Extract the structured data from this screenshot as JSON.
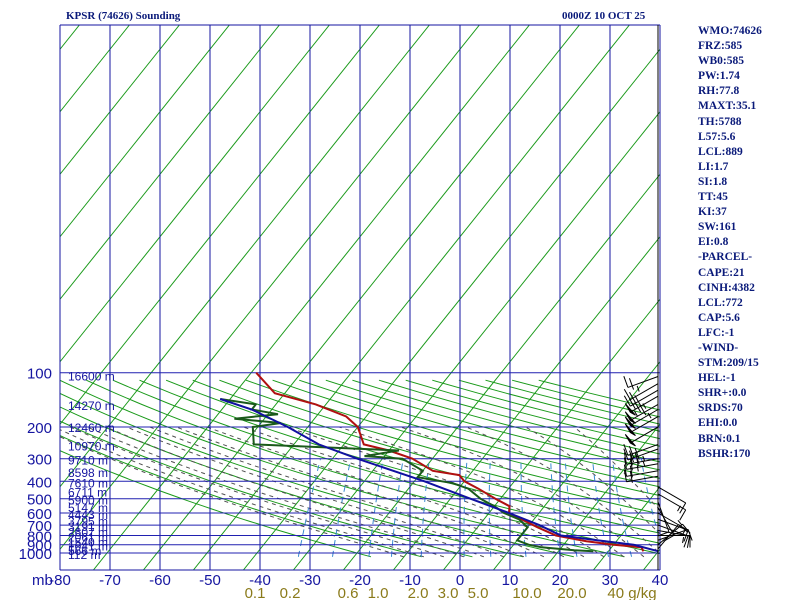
{
  "header": {
    "station_title": "KPSR (74626) Sounding",
    "time_label": "0000Z 10 OCT 25"
  },
  "indices": [
    "WMO:74626",
    "FRZ:585",
    "WB0:585",
    "PW:1.74",
    "RH:77.8",
    "MAXT:35.1",
    "TH:5788",
    "L57:5.6",
    "LCL:889",
    "LI:1.7",
    "SI:1.8",
    "TT:45",
    "KI:37",
    "SW:161",
    "EI:0.8",
    "-PARCEL-",
    "CAPE:21",
    "CINH:4382",
    "LCL:772",
    "CAP:5.6",
    "LFC:-1",
    "-WIND-",
    "STM:209/15",
    "HEL:-1",
    "SHR+:0.0",
    "SRDS:70",
    "EHI:0.0",
    "BRN:0.1",
    "BSHR:170"
  ],
  "chart_data": {
    "type": "skew-t",
    "y_axis_unit": "mb",
    "pressure_levels": [
      100,
      200,
      300,
      400,
      500,
      600,
      700,
      800,
      900,
      1000
    ],
    "pressure_labels": [
      "100",
      "200",
      "300",
      "400",
      "500",
      "600",
      "700",
      "800",
      "900",
      "1000"
    ],
    "temperature_ticks": [
      -80,
      -70,
      -60,
      -50,
      -40,
      -30,
      -20,
      -10,
      0,
      10,
      20,
      30,
      40
    ],
    "temperature_labels": [
      "-80",
      "-70",
      "-60",
      "-50",
      "-40",
      "-30",
      "-20",
      "-10",
      "0",
      "10",
      "20",
      "30",
      "40"
    ],
    "height_labels": [
      {
        "p": 102,
        "text": "16600 m"
      },
      {
        "p": 149,
        "text": "14270 m"
      },
      {
        "p": 198,
        "text": "12460 m"
      },
      {
        "p": 250,
        "text": "10970 m"
      },
      {
        "p": 300,
        "text": "9710 m"
      },
      {
        "p": 350,
        "text": "8598 m"
      },
      {
        "p": 400,
        "text": "7610 m"
      },
      {
        "p": 450,
        "text": "6711 m"
      },
      {
        "p": 500,
        "text": "5900 m"
      },
      {
        "p": 550,
        "text": "5147 m"
      },
      {
        "p": 600,
        "text": "4443 m"
      },
      {
        "p": 650,
        "text": "3795 m"
      },
      {
        "p": 700,
        "text": "3191 m"
      },
      {
        "p": 750,
        "text": "2607 m"
      },
      {
        "p": 800,
        "text": "2061 m"
      },
      {
        "p": 850,
        "text": "1540 m"
      },
      {
        "p": 900,
        "text": "1041 m"
      },
      {
        "p": 950,
        "text": "566 m"
      },
      {
        "p": 1000,
        "text": "112 m"
      }
    ],
    "mixing_ratio_labels": [
      "0.1",
      "0.2",
      "0.6",
      "1.0",
      "2.0",
      "3.0",
      "5.0",
      "10.0",
      "20.0",
      "40 g/kg"
    ],
    "mixing_ratio_values": [
      0.1,
      0.2,
      0.6,
      1.0,
      2.0,
      3.0,
      5.0,
      10.0,
      20.0,
      40
    ],
    "series": [
      {
        "name": "temperature",
        "color": "#b01010",
        "points": [
          {
            "p": 978,
            "t": 27
          },
          {
            "p": 930,
            "t": 26
          },
          {
            "p": 900,
            "t": 20
          },
          {
            "p": 860,
            "t": 14
          },
          {
            "p": 800,
            "t": 7
          },
          {
            "p": 720,
            "t": 2
          },
          {
            "p": 600,
            "t": -6
          },
          {
            "p": 550,
            "t": -7
          },
          {
            "p": 500,
            "t": -11
          },
          {
            "p": 440,
            "t": -16
          },
          {
            "p": 400,
            "t": -20
          },
          {
            "p": 370,
            "t": -22
          },
          {
            "p": 350,
            "t": -28
          },
          {
            "p": 300,
            "t": -34
          },
          {
            "p": 270,
            "t": -40
          },
          {
            "p": 250,
            "t": -46
          },
          {
            "p": 200,
            "t": -50
          },
          {
            "p": 175,
            "t": -54
          },
          {
            "p": 150,
            "t": -62
          },
          {
            "p": 130,
            "t": -72
          },
          {
            "p": 100,
            "t": -79
          }
        ]
      },
      {
        "name": "dewpoint",
        "color": "#1a5a1a",
        "points": [
          {
            "p": 978,
            "t": 17
          },
          {
            "p": 965,
            "t": 13
          },
          {
            "p": 930,
            "t": 6
          },
          {
            "p": 900,
            "t": 3
          },
          {
            "p": 850,
            "t": 0
          },
          {
            "p": 800,
            "t": 0
          },
          {
            "p": 720,
            "t": 0
          },
          {
            "p": 650,
            "t": -3
          },
          {
            "p": 600,
            "t": -7
          },
          {
            "p": 550,
            "t": -10
          },
          {
            "p": 500,
            "t": -14
          },
          {
            "p": 440,
            "t": -18
          },
          {
            "p": 410,
            "t": -22
          },
          {
            "p": 380,
            "t": -30
          },
          {
            "p": 370,
            "t": -30
          },
          {
            "p": 350,
            "t": -30
          },
          {
            "p": 300,
            "t": -36
          },
          {
            "p": 290,
            "t": -44
          },
          {
            "p": 270,
            "t": -38
          },
          {
            "p": 250,
            "t": -68
          },
          {
            "p": 200,
            "t": -71
          },
          {
            "p": 190,
            "t": -66
          },
          {
            "p": 180,
            "t": -76
          },
          {
            "p": 170,
            "t": -68
          },
          {
            "p": 160,
            "t": -74
          },
          {
            "p": 150,
            "t": -74
          },
          {
            "p": 140,
            "t": -82
          }
        ]
      },
      {
        "name": "parcel",
        "color": "#1010a0",
        "points": [
          {
            "p": 978,
            "t": 30
          },
          {
            "p": 900,
            "t": 24
          },
          {
            "p": 850,
            "t": 16
          },
          {
            "p": 800,
            "t": 8
          },
          {
            "p": 700,
            "t": 2
          },
          {
            "p": 600,
            "t": -6
          },
          {
            "p": 500,
            "t": -16
          },
          {
            "p": 400,
            "t": -28
          },
          {
            "p": 300,
            "t": -45
          },
          {
            "p": 250,
            "t": -55
          },
          {
            "p": 200,
            "t": -64
          },
          {
            "p": 160,
            "t": -74
          },
          {
            "p": 140,
            "t": -82
          }
        ]
      }
    ],
    "wind_barbs": [
      {
        "p": 105,
        "dir": 70,
        "spd": 25
      },
      {
        "p": 115,
        "dir": 60,
        "spd": 35
      },
      {
        "p": 125,
        "dir": 60,
        "spd": 45
      },
      {
        "p": 135,
        "dir": 60,
        "spd": 55
      },
      {
        "p": 150,
        "dir": 60,
        "spd": 50
      },
      {
        "p": 160,
        "dir": 60,
        "spd": 50
      },
      {
        "p": 175,
        "dir": 60,
        "spd": 50
      },
      {
        "p": 200,
        "dir": 60,
        "spd": 50
      },
      {
        "p": 250,
        "dir": 70,
        "spd": 35
      },
      {
        "p": 265,
        "dir": 70,
        "spd": 35
      },
      {
        "p": 300,
        "dir": 80,
        "spd": 30
      },
      {
        "p": 320,
        "dir": 80,
        "spd": 25
      },
      {
        "p": 350,
        "dir": 80,
        "spd": 20
      },
      {
        "p": 375,
        "dir": 80,
        "spd": 20
      },
      {
        "p": 430,
        "dir": 300,
        "spd": 15
      },
      {
        "p": 470,
        "dir": 300,
        "spd": 10
      },
      {
        "p": 520,
        "dir": 340,
        "spd": 10
      },
      {
        "p": 560,
        "dir": 330,
        "spd": 10
      },
      {
        "p": 600,
        "dir": 300,
        "spd": 5
      },
      {
        "p": 650,
        "dir": 290,
        "spd": 10
      },
      {
        "p": 700,
        "dir": 290,
        "spd": 10
      },
      {
        "p": 750,
        "dir": 280,
        "spd": 15
      },
      {
        "p": 800,
        "dir": 270,
        "spd": 10
      },
      {
        "p": 850,
        "dir": 250,
        "spd": 10
      },
      {
        "p": 900,
        "dir": 230,
        "spd": 15
      },
      {
        "p": 950,
        "dir": 220,
        "spd": 10
      }
    ],
    "colors": {
      "frame": "#1515a0",
      "isobar": "#2020b0",
      "isotherm": "#1a9a1a",
      "dry_adiabat": "#1a9a1a",
      "moist_adiabat": "#505050",
      "mixing_ratio": "#3a8ad0",
      "barb": "#000000"
    }
  }
}
